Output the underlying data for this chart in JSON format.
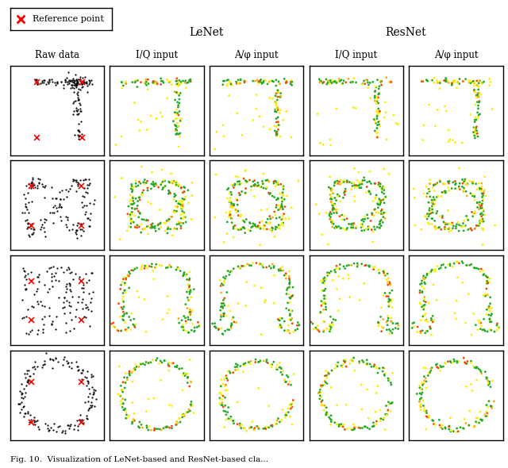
{
  "title": "Fig. 10. Visualization of LeNet-based and ResNet-based cla",
  "legend_label": "Reference point",
  "col_headers": [
    "Raw data",
    "I/Q input",
    "A/φ input",
    "I/Q input",
    "A/φ input"
  ],
  "group_headers": [
    "LeNet",
    "ResNet"
  ],
  "nrows": 4,
  "ncols": 5,
  "figsize": [
    6.4,
    5.9
  ],
  "dpi": 100,
  "background": "white"
}
